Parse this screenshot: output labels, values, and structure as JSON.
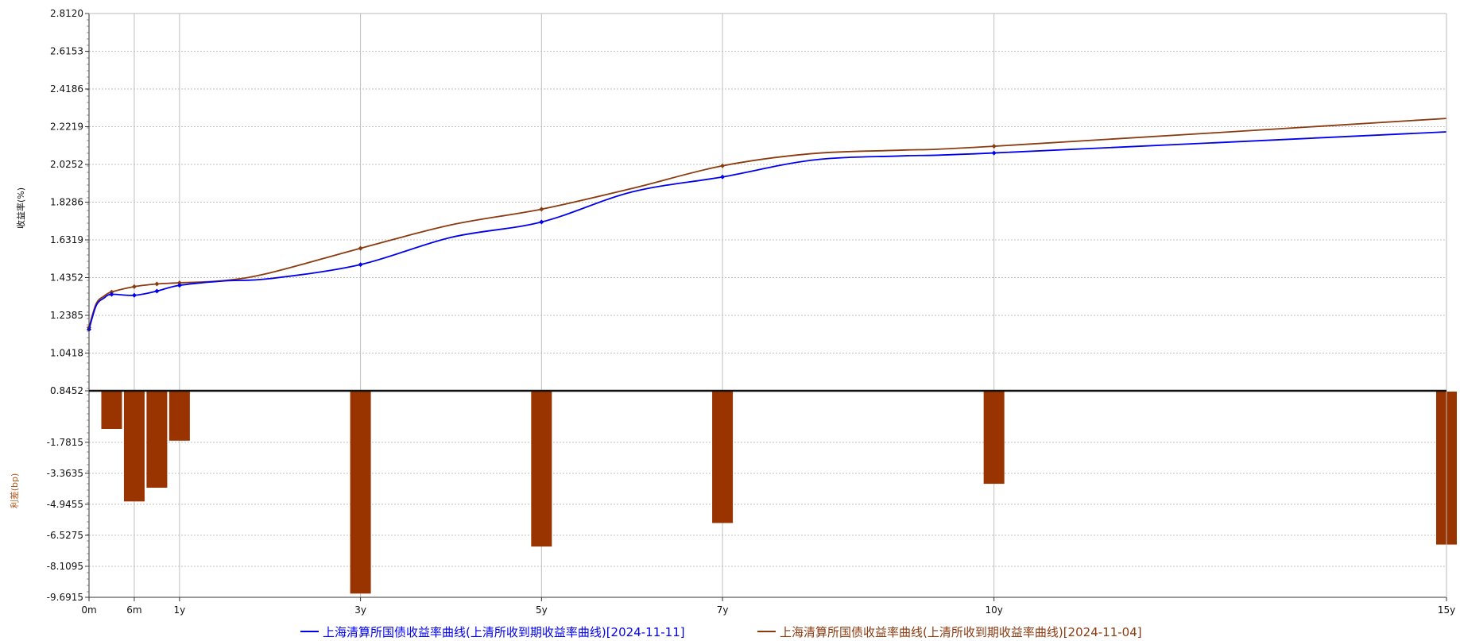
{
  "chart_data": [
    {
      "type": "line",
      "ylabel": "收益率(%)",
      "ylim": [
        0.8452,
        2.812
      ],
      "y_ticks": [
        "2.8120",
        "2.6153",
        "2.4186",
        "2.2219",
        "2.0252",
        "1.8286",
        "1.6319",
        "1.4352",
        "1.2385",
        "1.0418",
        "0.8452"
      ],
      "x_tick_labels": [
        "0m",
        "6m",
        "1y",
        "3y",
        "5y",
        "7y",
        "10y",
        "15y"
      ],
      "x_tick_values": [
        0,
        0.5,
        1,
        3,
        5,
        7,
        10,
        15
      ],
      "xlim": [
        0,
        15
      ],
      "grid": true,
      "series": [
        {
          "name": "上海清算所国债收益率曲线(上清所收到期收益率曲线)[2024-11-11]",
          "color": "#0000ee",
          "x": [
            0,
            0.08,
            0.17,
            0.25,
            0.5,
            0.75,
            1,
            1.5,
            2,
            3,
            4,
            5,
            6,
            7,
            8,
            9,
            10,
            15
          ],
          "y": [
            1.165,
            1.29,
            1.33,
            1.348,
            1.343,
            1.365,
            1.395,
            1.418,
            1.43,
            1.503,
            1.645,
            1.725,
            1.882,
            1.96,
            2.048,
            2.07,
            2.085,
            2.195
          ],
          "markers_x": [
            0,
            0.25,
            0.5,
            0.75,
            1,
            3,
            5,
            7,
            10
          ]
        },
        {
          "name": "上海清算所国债收益率曲线(上清所收到期收益率曲线)[2024-11-04]",
          "color": "#8b3a0f",
          "x": [
            0,
            0.08,
            0.17,
            0.25,
            0.5,
            0.75,
            1,
            1.5,
            2,
            3,
            4,
            5,
            6,
            7,
            8,
            9,
            10,
            15
          ],
          "y": [
            1.175,
            1.3,
            1.34,
            1.36,
            1.388,
            1.402,
            1.408,
            1.42,
            1.46,
            1.588,
            1.71,
            1.792,
            1.9,
            2.018,
            2.082,
            2.1,
            2.12,
            2.265
          ],
          "markers_x": [
            0,
            0.25,
            0.5,
            0.75,
            1,
            3,
            5,
            7,
            10
          ]
        }
      ]
    },
    {
      "type": "bar",
      "ylabel": "利差(bp)",
      "ylim": [
        -9.6915,
        0.8452
      ],
      "y_ticks": [
        "-1.7815",
        "-3.3635",
        "-4.9455",
        "-6.5275",
        "-8.1095",
        "-9.6915"
      ],
      "bar_color": "#993300",
      "x": [
        0.25,
        0.5,
        0.75,
        1,
        3,
        5,
        7,
        10,
        15
      ],
      "values": [
        -1.1,
        -4.8,
        -4.1,
        -1.7,
        -9.5,
        -7.1,
        -5.9,
        -3.9,
        -7.0
      ]
    }
  ],
  "legend": [
    {
      "label": "上海清算所国债收益率曲线(上清所收到期收益率曲线)[2024-11-11]",
      "color": "#0000ee"
    },
    {
      "label": "上海清算所国债收益率曲线(上清所收到期收益率曲线)[2024-11-04]",
      "color": "#8b3a0f"
    }
  ]
}
